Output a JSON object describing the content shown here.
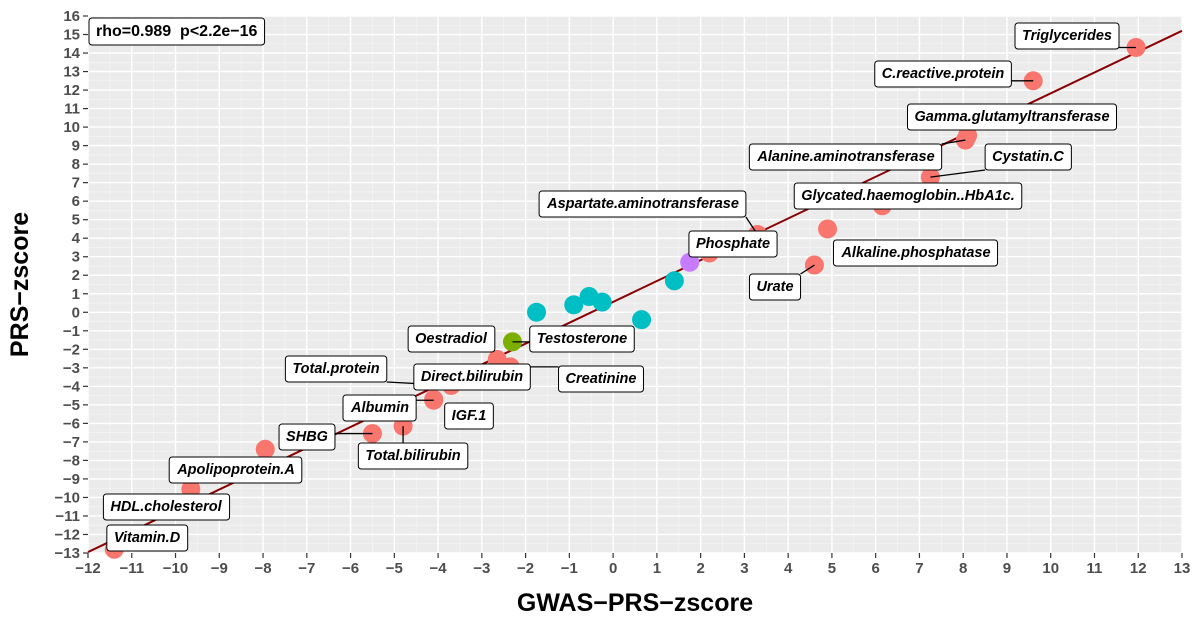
{
  "chart_data": {
    "type": "scatter",
    "xlabel": "GWAS−PRS−zscore",
    "ylabel": "PRS−zscore",
    "xlim": [
      -12,
      13
    ],
    "ylim": [
      -13,
      16
    ],
    "xticks": [
      "−12",
      "−11",
      "−10",
      "−9",
      "−8",
      "−7",
      "−6",
      "−5",
      "−4",
      "−3",
      "−2",
      "−1",
      "0",
      "1",
      "2",
      "3",
      "4",
      "5",
      "6",
      "7",
      "8",
      "9",
      "10",
      "11",
      "12",
      "13"
    ],
    "yticks": [
      "−13",
      "−12",
      "−11",
      "−10",
      "−9",
      "−8",
      "−7",
      "−6",
      "−5",
      "−4",
      "−3",
      "−2",
      "−1",
      "0",
      "1",
      "2",
      "3",
      "4",
      "5",
      "6",
      "7",
      "8",
      "9",
      "10",
      "11",
      "12",
      "13",
      "14",
      "15",
      "16"
    ],
    "annotation": "rho=0.989  p<2.2e−16",
    "grid": true,
    "background": "#ebebeb",
    "regression_line": {
      "color": "#8b0000",
      "from": [
        -12,
        -12.95
      ],
      "to": [
        13,
        15.2
      ]
    },
    "colors": {
      "red": "#f8766d",
      "cyan": "#00bfc4",
      "green": "#7cae00",
      "purple": "#c77cff"
    },
    "points": [
      {
        "label": "Triglycerides",
        "x": 11.95,
        "y": 14.3,
        "color": "#f8766d"
      },
      {
        "label": "C.reactive.protein",
        "x": 9.6,
        "y": 12.5,
        "color": "#f8766d"
      },
      {
        "label": "Gamma.glutamyltransferase",
        "x": 8.1,
        "y": 9.55,
        "color": "#f8766d"
      },
      {
        "label": "Alanine.aminotransferase",
        "x": 8.05,
        "y": 9.3,
        "color": "#f8766d"
      },
      {
        "label": "Cystatin.C",
        "x": 7.25,
        "y": 7.3,
        "color": "#f8766d"
      },
      {
        "label": "Glycated.haemoglobin..HbA1c.",
        "x": 6.15,
        "y": 5.75,
        "color": "#f8766d"
      },
      {
        "label": "Aspartate.aminotransferase",
        "x": 3.3,
        "y": 4.2,
        "color": "#f8766d"
      },
      {
        "label": "Alkaline.phosphatase",
        "x": 4.9,
        "y": 4.5,
        "color": "#f8766d"
      },
      {
        "label": "Phosphate",
        "x": 2.2,
        "y": 3.2,
        "color": "#f8766d"
      },
      {
        "label": "Urate",
        "x": 4.6,
        "y": 2.55,
        "color": "#f8766d"
      },
      {
        "label": "",
        "x": 1.75,
        "y": 2.7,
        "color": "#c77cff"
      },
      {
        "label": "",
        "x": 1.4,
        "y": 1.7,
        "color": "#00bfc4"
      },
      {
        "label": "",
        "x": -0.55,
        "y": 0.85,
        "color": "#00bfc4"
      },
      {
        "label": "",
        "x": -0.25,
        "y": 0.55,
        "color": "#00bfc4"
      },
      {
        "label": "",
        "x": -0.9,
        "y": 0.4,
        "color": "#00bfc4"
      },
      {
        "label": "",
        "x": -1.75,
        "y": 0.0,
        "color": "#00bfc4"
      },
      {
        "label": "",
        "x": 0.65,
        "y": -0.4,
        "color": "#00bfc4"
      },
      {
        "label": "Testosterone",
        "x": -2.3,
        "y": -1.6,
        "color": "#7cae00"
      },
      {
        "label": "Oestradiol",
        "x": -2.65,
        "y": -2.55,
        "color": "#f8766d"
      },
      {
        "label": "Creatinine",
        "x": -2.35,
        "y": -2.95,
        "color": "#f8766d"
      },
      {
        "label": "Direct.bilirubin",
        "x": -2.55,
        "y": -3.05,
        "color": "#f8766d"
      },
      {
        "label": "Total.protein",
        "x": -3.7,
        "y": -3.95,
        "color": "#f8766d"
      },
      {
        "label": "Albumin",
        "x": -4.1,
        "y": -4.75,
        "color": "#f8766d"
      },
      {
        "label": "IGF.1",
        "x": -4.1,
        "y": -4.7,
        "color": "#f8766d"
      },
      {
        "label": "Total.bilirubin",
        "x": -4.8,
        "y": -6.15,
        "color": "#f8766d"
      },
      {
        "label": "SHBG",
        "x": -5.5,
        "y": -6.55,
        "color": "#f8766d"
      },
      {
        "label": "Apolipoprotein.A",
        "x": -7.95,
        "y": -7.4,
        "color": "#f8766d"
      },
      {
        "label": "HDL.cholesterol",
        "x": -9.65,
        "y": -9.55,
        "color": "#f8766d"
      },
      {
        "label": "Vitamin.D",
        "x": -11.4,
        "y": -12.8,
        "color": "#f8766d"
      }
    ]
  }
}
